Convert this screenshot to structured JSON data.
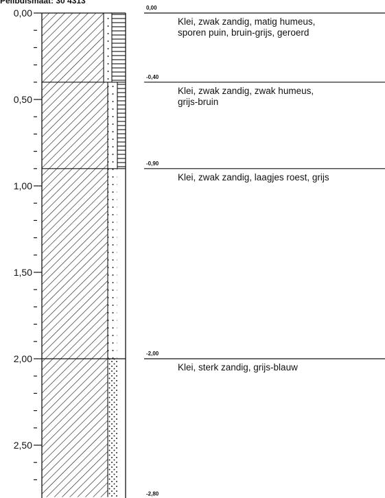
{
  "header": {
    "label": "Peilbuismaat: 30 4313"
  },
  "axis": {
    "max_depth_m": 2.8,
    "major_ticks": [
      {
        "depth": 0.0,
        "label": "0,00"
      },
      {
        "depth": 0.5,
        "label": "0,50"
      },
      {
        "depth": 1.0,
        "label": "1,00"
      },
      {
        "depth": 1.5,
        "label": "1,50"
      },
      {
        "depth": 2.0,
        "label": "2,00"
      },
      {
        "depth": 2.5,
        "label": "2,50"
      }
    ],
    "minor_tick_step_m": 0.1
  },
  "layers": [
    {
      "top": 0.0,
      "bottom": 0.4,
      "top_label": "0,00",
      "description": [
        "Klei, zwak zandig, matig humeus,",
        "sporen puin, bruin-grijs, geroerd"
      ],
      "dots": true,
      "humus": true
    },
    {
      "top": 0.4,
      "bottom": 0.9,
      "top_label": "-0,40",
      "description": [
        "Klei, zwak zandig, zwak humeus,",
        "grijs-bruin"
      ],
      "dots": true,
      "humus": true
    },
    {
      "top": 0.9,
      "bottom": 2.0,
      "top_label": "-0,90",
      "description": [
        "Klei, zwak zandig, laagjes roest, grijs"
      ],
      "dots": true,
      "humus": false
    },
    {
      "top": 2.0,
      "bottom": 2.8,
      "top_label": "-2,00",
      "description": [
        "Klei, sterk zandig, grijs-blauw"
      ],
      "dots": "dense",
      "humus": false
    }
  ],
  "end_label": "-2,80"
}
